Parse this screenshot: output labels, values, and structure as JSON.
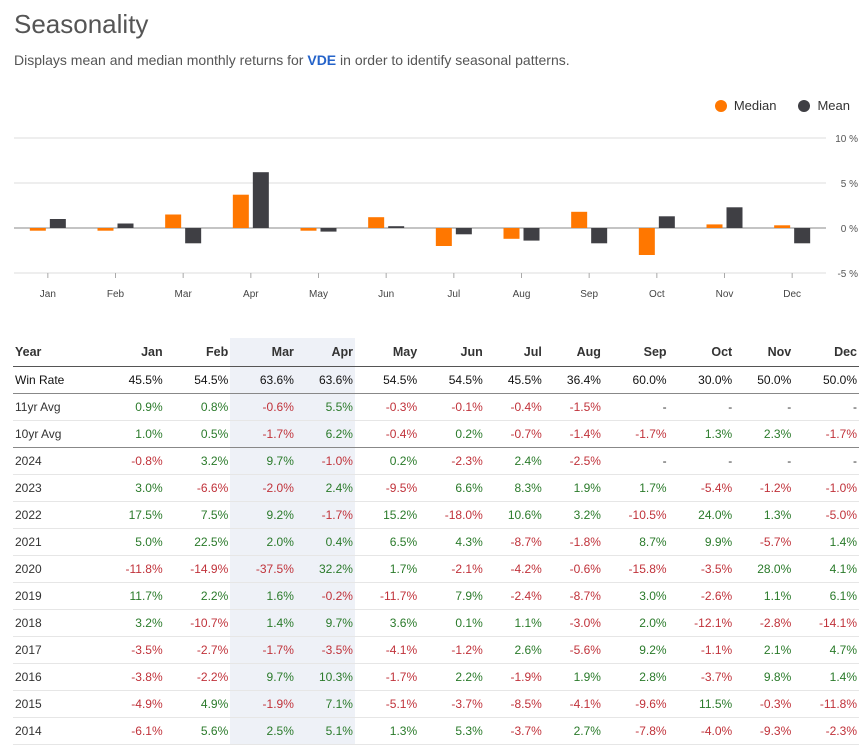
{
  "header": {
    "title": "Seasonality",
    "subtitle_pre": "Displays mean and median monthly returns for ",
    "ticker": "VDE",
    "subtitle_post": " in order to identify seasonal patterns."
  },
  "legend": [
    {
      "label": "Median",
      "color": "#ff7700"
    },
    {
      "label": "Mean",
      "color": "#3f3f44"
    }
  ],
  "chart_data": {
    "type": "bar",
    "categories": [
      "Jan",
      "Feb",
      "Mar",
      "Apr",
      "May",
      "Jun",
      "Jul",
      "Aug",
      "Sep",
      "Oct",
      "Nov",
      "Dec"
    ],
    "series": [
      {
        "name": "Median",
        "color": "#ff7700",
        "values": [
          -0.3,
          -0.3,
          1.5,
          3.7,
          -0.3,
          1.2,
          -2.0,
          -1.2,
          1.8,
          -3.0,
          0.4,
          0.3
        ]
      },
      {
        "name": "Mean",
        "color": "#3f3f44",
        "values": [
          1.0,
          0.5,
          -1.7,
          6.2,
          -0.4,
          0.2,
          -0.7,
          -1.4,
          -1.7,
          1.3,
          2.3,
          -1.7
        ]
      }
    ],
    "yticks": [
      "10 %",
      "5 %",
      "0 %",
      "-5 %"
    ],
    "ylim": [
      -5,
      10
    ],
    "grid": true,
    "legend_position": "top-right"
  },
  "table": {
    "headers": [
      "Year",
      "Jan",
      "Feb",
      "Mar",
      "Apr",
      "May",
      "Jun",
      "Jul",
      "Aug",
      "Sep",
      "Oct",
      "Nov",
      "Dec"
    ],
    "highlight_columns": [
      3,
      4
    ],
    "rows": [
      {
        "kind": "winrate",
        "cells": [
          "Win Rate",
          "45.5%",
          "54.5%",
          "63.6%",
          "63.6%",
          "54.5%",
          "54.5%",
          "45.5%",
          "36.4%",
          "60.0%",
          "30.0%",
          "50.0%",
          "50.0%"
        ]
      },
      {
        "kind": "avg",
        "cells": [
          "11yr Avg",
          "0.9%",
          "0.8%",
          "-0.6%",
          "5.5%",
          "-0.3%",
          "-0.1%",
          "-0.4%",
          "-1.5%",
          "-",
          "-",
          "-",
          "-"
        ]
      },
      {
        "kind": "avg10",
        "cells": [
          "10yr Avg",
          "1.0%",
          "0.5%",
          "-1.7%",
          "6.2%",
          "-0.4%",
          "0.2%",
          "-0.7%",
          "-1.4%",
          "-1.7%",
          "1.3%",
          "2.3%",
          "-1.7%"
        ]
      },
      {
        "kind": "year",
        "cells": [
          "2024",
          "-0.8%",
          "3.2%",
          "9.7%",
          "-1.0%",
          "0.2%",
          "-2.3%",
          "2.4%",
          "-2.5%",
          "-",
          "-",
          "-",
          "-"
        ]
      },
      {
        "kind": "year",
        "cells": [
          "2023",
          "3.0%",
          "-6.6%",
          "-2.0%",
          "2.4%",
          "-9.5%",
          "6.6%",
          "8.3%",
          "1.9%",
          "1.7%",
          "-5.4%",
          "-1.2%",
          "-1.0%"
        ]
      },
      {
        "kind": "year",
        "cells": [
          "2022",
          "17.5%",
          "7.5%",
          "9.2%",
          "-1.7%",
          "15.2%",
          "-18.0%",
          "10.6%",
          "3.2%",
          "-10.5%",
          "24.0%",
          "1.3%",
          "-5.0%"
        ]
      },
      {
        "kind": "year",
        "cells": [
          "2021",
          "5.0%",
          "22.5%",
          "2.0%",
          "0.4%",
          "6.5%",
          "4.3%",
          "-8.7%",
          "-1.8%",
          "8.7%",
          "9.9%",
          "-5.7%",
          "1.4%"
        ]
      },
      {
        "kind": "year",
        "cells": [
          "2020",
          "-11.8%",
          "-14.9%",
          "-37.5%",
          "32.2%",
          "1.7%",
          "-2.1%",
          "-4.2%",
          "-0.6%",
          "-15.8%",
          "-3.5%",
          "28.0%",
          "4.1%"
        ]
      },
      {
        "kind": "year",
        "cells": [
          "2019",
          "11.7%",
          "2.2%",
          "1.6%",
          "-0.2%",
          "-11.7%",
          "7.9%",
          "-2.4%",
          "-8.7%",
          "3.0%",
          "-2.6%",
          "1.1%",
          "6.1%"
        ]
      },
      {
        "kind": "year",
        "cells": [
          "2018",
          "3.2%",
          "-10.7%",
          "1.4%",
          "9.7%",
          "3.6%",
          "0.1%",
          "1.1%",
          "-3.0%",
          "2.0%",
          "-12.1%",
          "-2.8%",
          "-14.1%"
        ]
      },
      {
        "kind": "year",
        "cells": [
          "2017",
          "-3.5%",
          "-2.7%",
          "-1.7%",
          "-3.5%",
          "-4.1%",
          "-1.2%",
          "2.6%",
          "-5.6%",
          "9.2%",
          "-1.1%",
          "2.1%",
          "4.7%"
        ]
      },
      {
        "kind": "year",
        "cells": [
          "2016",
          "-3.8%",
          "-2.2%",
          "9.7%",
          "10.3%",
          "-1.7%",
          "2.2%",
          "-1.9%",
          "1.9%",
          "2.8%",
          "-3.7%",
          "9.8%",
          "1.4%"
        ]
      },
      {
        "kind": "year",
        "cells": [
          "2015",
          "-4.9%",
          "4.9%",
          "-1.9%",
          "7.1%",
          "-5.1%",
          "-3.7%",
          "-8.5%",
          "-4.1%",
          "-9.6%",
          "11.5%",
          "-0.3%",
          "-11.8%"
        ]
      },
      {
        "kind": "year",
        "cells": [
          "2014",
          "-6.1%",
          "5.6%",
          "2.5%",
          "5.1%",
          "1.3%",
          "5.3%",
          "-3.7%",
          "2.7%",
          "-7.8%",
          "-4.0%",
          "-9.3%",
          "-2.3%"
        ]
      }
    ]
  }
}
